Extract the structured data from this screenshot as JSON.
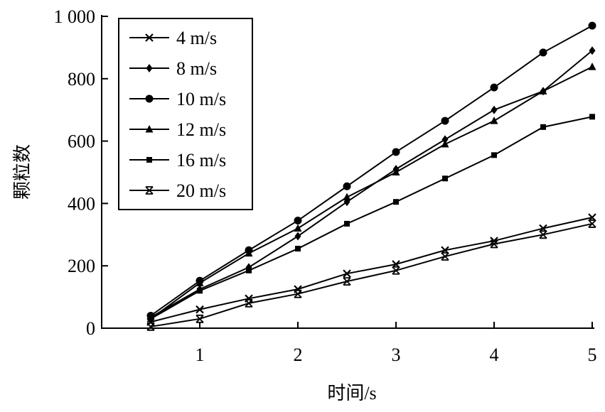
{
  "chart_data": {
    "type": "line",
    "title": "",
    "xlabel": "时间/s",
    "ylabel": "颗粒数",
    "xlim": [
      0.5,
      5
    ],
    "ylim": [
      0,
      1000
    ],
    "x_ticks": [
      1,
      2,
      3,
      4,
      5
    ],
    "x_tick_labels": [
      "1",
      "2",
      "3",
      "4",
      "5"
    ],
    "y_ticks": [
      0,
      200,
      400,
      600,
      800,
      1000
    ],
    "y_tick_labels": [
      "0",
      "200",
      "400",
      "600",
      "800",
      "1 000"
    ],
    "grid": false,
    "legend_position": "top-left",
    "x": [
      0.5,
      1,
      1.5,
      2,
      2.5,
      3,
      3.5,
      4,
      4.5,
      5
    ],
    "series": [
      {
        "name": "4 m/s",
        "marker": "x",
        "values": [
          20,
          60,
          95,
          125,
          175,
          205,
          250,
          280,
          320,
          355
        ]
      },
      {
        "name": "8 m/s",
        "marker": "diamond",
        "values": [
          35,
          125,
          195,
          295,
          405,
          510,
          605,
          700,
          760,
          890
        ]
      },
      {
        "name": "10 m/s",
        "marker": "circle",
        "values": [
          40,
          152,
          250,
          345,
          455,
          565,
          665,
          772,
          884,
          970
        ]
      },
      {
        "name": "12 m/s",
        "marker": "triangle",
        "values": [
          30,
          145,
          240,
          320,
          420,
          500,
          590,
          665,
          760,
          838
        ]
      },
      {
        "name": "16 m/s",
        "marker": "square",
        "values": [
          30,
          120,
          185,
          255,
          335,
          405,
          480,
          555,
          645,
          678
        ]
      },
      {
        "name": "20 m/s",
        "marker": "star",
        "values": [
          5,
          30,
          80,
          110,
          150,
          185,
          230,
          270,
          300,
          335
        ]
      }
    ]
  }
}
